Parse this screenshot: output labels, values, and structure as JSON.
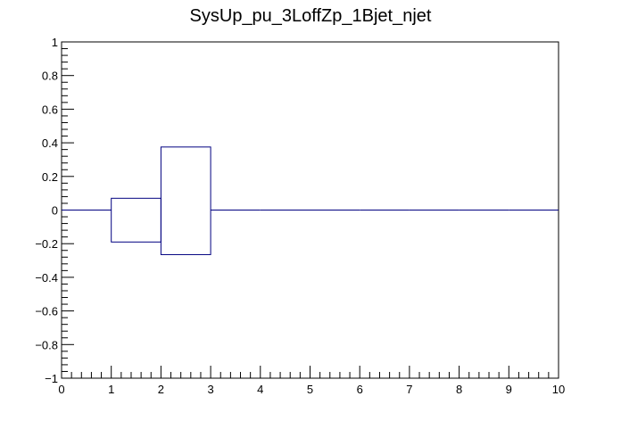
{
  "chart_data": {
    "type": "box",
    "title": "SysUp_pu_3LoffZp_1Bjet_njet",
    "xlim": [
      0,
      10
    ],
    "ylim": [
      -1,
      1
    ],
    "x_ticks": [
      "0",
      "1",
      "2",
      "3",
      "4",
      "5",
      "6",
      "7",
      "8",
      "9",
      "10"
    ],
    "y_ticks": [
      "1",
      "0.8",
      "0.6",
      "0.4",
      "0.2",
      "0",
      "−0.2",
      "−0.4",
      "−0.6",
      "−0.8",
      "−1"
    ],
    "y_tick_values": [
      1,
      0.8,
      0.6,
      0.4,
      0.2,
      0,
      -0.2,
      -0.4,
      -0.6,
      -0.8,
      -1
    ],
    "bins": [
      {
        "x0": 0,
        "x1": 1,
        "low": 0,
        "high": 0
      },
      {
        "x0": 1,
        "x1": 2,
        "low": -0.19,
        "high": 0.07
      },
      {
        "x0": 2,
        "x1": 3,
        "low": -0.265,
        "high": 0.375
      },
      {
        "x0": 3,
        "x1": 4,
        "low": 0,
        "high": 0
      },
      {
        "x0": 4,
        "x1": 5,
        "low": 0,
        "high": 0
      },
      {
        "x0": 5,
        "x1": 6,
        "low": 0,
        "high": 0
      },
      {
        "x0": 6,
        "x1": 7,
        "low": 0,
        "high": 0
      },
      {
        "x0": 7,
        "x1": 8,
        "low": 0,
        "high": 0
      },
      {
        "x0": 8,
        "x1": 9,
        "low": 0,
        "high": 0
      },
      {
        "x0": 9,
        "x1": 10,
        "low": 0,
        "high": 0
      }
    ],
    "line_color": "#000080",
    "grid": false,
    "legend": "none"
  }
}
